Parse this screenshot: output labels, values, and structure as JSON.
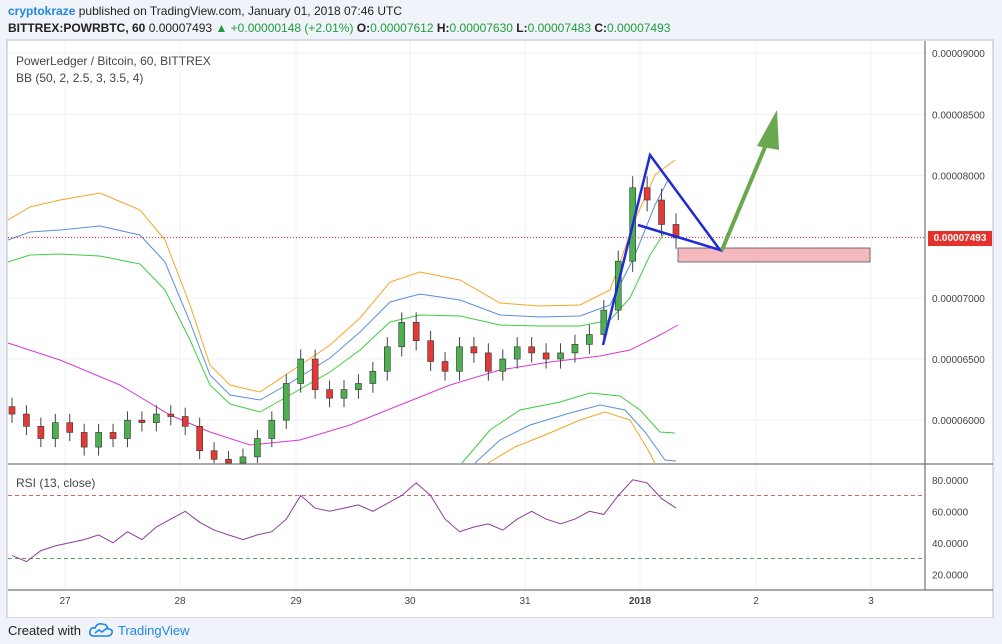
{
  "header": {
    "user": "cryptokraze",
    "published_text": "published on TradingView.com, January 01, 2018 07:46 UTC",
    "symbol": "BITTREX:POWRBTC, 60",
    "last": "0.00007493",
    "change": "+0.00000148 (+2.01%)",
    "open_label": "O:",
    "open": "0.00007612",
    "high_label": "H:",
    "high": "0.00007630",
    "low_label": "L:",
    "low": "0.00007483",
    "close_label": "C:",
    "close": "0.00007493"
  },
  "legend": {
    "title": "PowerLedger / Bitcoin, 60, BITTREX",
    "bb": "BB (50, 2, 2.5, 3, 3.5, 4)",
    "rsi": "RSI (13, close)"
  },
  "footer": {
    "created": "Created with",
    "brand": "TradingView"
  },
  "colors": {
    "up_candle": "#4caf50",
    "down_candle": "#e53935",
    "bb_orange": "#f5a623",
    "bb_blue": "#5b8fd6",
    "bb_green": "#3ecf3e",
    "bb_middle": "#d63ad6",
    "rsi_line": "#8e3a9c",
    "pattern_line": "#1f2bd6",
    "arrow": "#6aa84f",
    "zone_fill": "#f4b8bd",
    "price_tag": "#e4312b"
  },
  "chart_data": [
    {
      "type": "candlestick",
      "title": "PowerLedger / Bitcoin, 60, BITTREX",
      "x_tick_labels": [
        "27",
        "28",
        "29",
        "30",
        "31",
        "2018",
        "2",
        "3"
      ],
      "y_tick_labels": [
        "0.00006000",
        "0.00006500",
        "0.00007000",
        "0.00007500",
        "0.00008000",
        "0.00008500",
        "0.00009000"
      ],
      "ylim": [
        5.65e-05,
        9.1e-05
      ],
      "last_price_label": "0.00007493",
      "last_price": 7.493e-05,
      "candles_close_approx": [
        6.05e-05,
        5.95e-05,
        5.85e-05,
        5.98e-05,
        5.9e-05,
        5.78e-05,
        5.9e-05,
        5.85e-05,
        6e-05,
        5.98e-05,
        6.05e-05,
        6.03e-05,
        5.95e-05,
        5.75e-05,
        5.68e-05,
        5.65e-05,
        5.7e-05,
        5.85e-05,
        6e-05,
        6.3e-05,
        6.5e-05,
        6.25e-05,
        6.18e-05,
        6.25e-05,
        6.3e-05,
        6.4e-05,
        6.6e-05,
        6.8e-05,
        6.65e-05,
        6.48e-05,
        6.4e-05,
        6.6e-05,
        6.55e-05,
        6.4e-05,
        6.5e-05,
        6.6e-05,
        6.55e-05,
        6.5e-05,
        6.55e-05,
        6.62e-05,
        6.7e-05,
        6.9e-05,
        7.3e-05,
        7.9e-05,
        7.8e-05,
        7.6e-05,
        7.49e-05
      ],
      "bollinger_middle_approx": [
        6.95e-05,
        6.9e-05,
        6.83e-05,
        6.75e-05,
        6.68e-05,
        6.6e-05,
        6.45e-05,
        6.2e-05,
        6e-05,
        5.9e-05,
        5.8e-05,
        5.75e-05,
        5.85e-05,
        5.95e-05,
        6.05e-05,
        6.15e-05,
        6.25e-05,
        6.35e-05,
        6.45e-05,
        6.5e-05,
        6.55e-05,
        6.6e-05,
        6.7e-05
      ],
      "annotations": [
        "blue pennant pattern",
        "green arrow pointing up",
        "pink support zone"
      ]
    },
    {
      "type": "line",
      "title": "RSI (13, close)",
      "y_tick_labels": [
        "20.0000",
        "40.0000",
        "60.0000",
        "80.0000"
      ],
      "ylim": [
        10,
        90
      ],
      "levels": [
        70,
        30
      ],
      "values_approx": [
        32,
        28,
        35,
        38,
        40,
        42,
        45,
        40,
        47,
        42,
        50,
        55,
        60,
        53,
        48,
        45,
        42,
        45,
        47,
        55,
        70,
        62,
        60,
        62,
        64,
        60,
        65,
        70,
        78,
        70,
        55,
        47,
        50,
        52,
        48,
        55,
        60,
        55,
        52,
        55,
        60,
        58,
        70,
        80,
        78,
        68,
        62
      ]
    }
  ]
}
